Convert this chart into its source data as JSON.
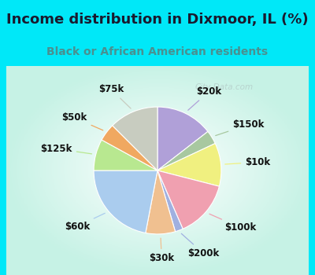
{
  "title": "Income distribution in Dixmoor, IL (%)",
  "subtitle": "Black or African American residents",
  "title_color": "#1a1a2e",
  "subtitle_color": "#4a9090",
  "bg_cyan": "#00e8f8",
  "watermark": "City-Data.com",
  "slices": [
    {
      "label": "$20k",
      "value": 14.5,
      "color": "#b0a0d8"
    },
    {
      "label": "$150k",
      "value": 3.5,
      "color": "#a8c8a0"
    },
    {
      "label": "$10k",
      "value": 11.0,
      "color": "#f0f080"
    },
    {
      "label": "$100k",
      "value": 14.5,
      "color": "#f0a0b0"
    },
    {
      "label": "$200k",
      "value": 2.0,
      "color": "#a0b0e0"
    },
    {
      "label": "$30k",
      "value": 7.5,
      "color": "#f0c090"
    },
    {
      "label": "$60k",
      "value": 22.0,
      "color": "#aaccee"
    },
    {
      "label": "$125k",
      "value": 8.0,
      "color": "#b8e890"
    },
    {
      "label": "$50k",
      "value": 4.5,
      "color": "#f0a860"
    },
    {
      "label": "$75k",
      "value": 12.5,
      "color": "#c8ccc0"
    }
  ],
  "label_fontsize": 8.5,
  "title_fontsize": 13,
  "subtitle_fontsize": 10
}
